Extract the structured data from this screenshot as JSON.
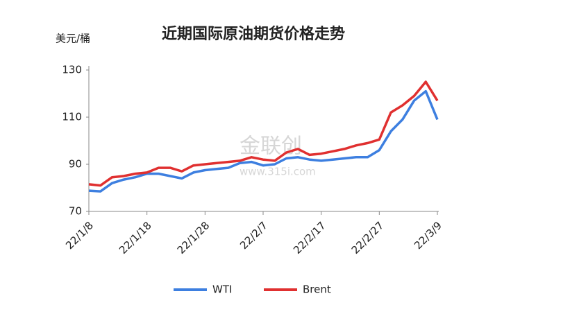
{
  "chart_data": {
    "type": "line",
    "title": "近期国际原油期货价格走势",
    "y_label": "美元/桶",
    "watermark": "金联创",
    "watermark_url": "www.315i.com",
    "categories": [
      "22/1/8",
      null,
      null,
      null,
      null,
      "22/1/18",
      null,
      null,
      null,
      null,
      "22/1/28",
      null,
      null,
      null,
      null,
      "22/2/7",
      null,
      null,
      null,
      null,
      "22/2/17",
      null,
      null,
      null,
      null,
      "22/2/27",
      null,
      null,
      null,
      null,
      "22/3/9"
    ],
    "series": [
      {
        "name": "WTI",
        "color": "#3d7fe0",
        "values": [
          78.8,
          78.5,
          82,
          83.5,
          84.5,
          86,
          86,
          85,
          84,
          86.5,
          87.5,
          88,
          88.5,
          90.5,
          91,
          89.5,
          90,
          92.5,
          93,
          92,
          91.5,
          92,
          92.5,
          93,
          93,
          96,
          104,
          109,
          117,
          121,
          109
        ]
      },
      {
        "name": "Brent",
        "color": "#e03030",
        "values": [
          81.5,
          81,
          84.5,
          85,
          86,
          86.5,
          88.5,
          88.5,
          87,
          89.5,
          90,
          90.5,
          91,
          91.5,
          93,
          92,
          91.5,
          95,
          96.5,
          94,
          94.5,
          95.5,
          96.5,
          98,
          99,
          100.5,
          112,
          115,
          119,
          125,
          117
        ]
      }
    ],
    "ylim": [
      70,
      130
    ],
    "yticks": [
      70,
      90,
      110,
      130
    ]
  }
}
